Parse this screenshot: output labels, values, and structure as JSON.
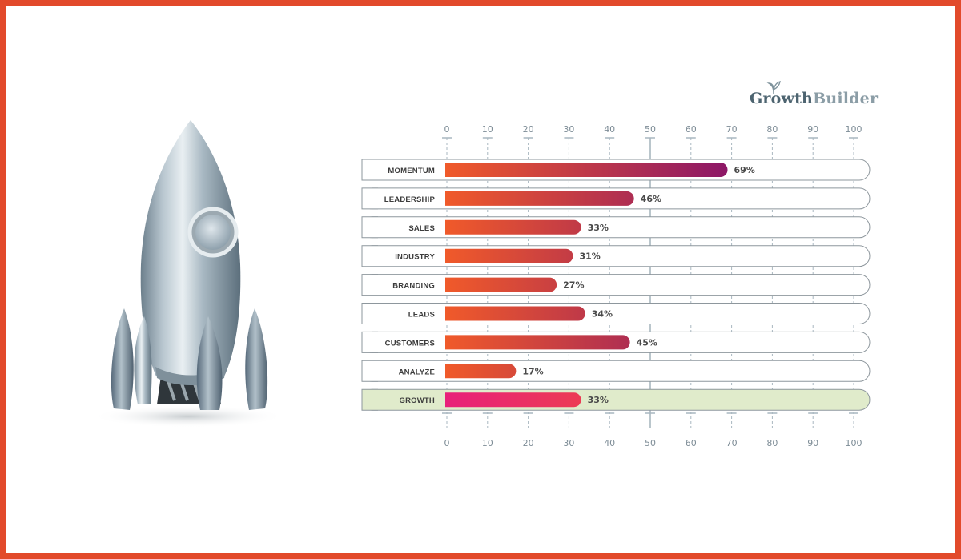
{
  "brand": {
    "name_part1": "Growth",
    "name_part2": "Builder"
  },
  "colors": {
    "frame": "#e24a2b",
    "bar_start": "#f05a2a",
    "bar_end": "#8b1668",
    "highlight_row_bg": "#e0ebcb",
    "highlight_bar_start": "#e8207a",
    "highlight_bar_end": "#f05a2a",
    "axis": "#a9b7c0"
  },
  "illustration": {
    "icon": "rocket-icon"
  },
  "chart_data": {
    "type": "bar",
    "orientation": "horizontal",
    "categories": [
      "MOMENTUM",
      "LEADERSHIP",
      "SALES",
      "INDUSTRY",
      "BRANDING",
      "LEADS",
      "CUSTOMERS",
      "ANALYZE",
      "GROWTH"
    ],
    "values": [
      69,
      46,
      33,
      31,
      27,
      34,
      45,
      17,
      33
    ],
    "value_labels": [
      "69%",
      "46%",
      "33%",
      "31%",
      "27%",
      "34%",
      "45%",
      "17%",
      "33%"
    ],
    "highlighted_category": "GROWTH",
    "xlim": [
      0,
      100
    ],
    "x_ticks": [
      "0",
      "10",
      "20",
      "30",
      "40",
      "50",
      "60",
      "70",
      "80",
      "90",
      "100"
    ],
    "axes": "top-and-bottom",
    "grid": true,
    "legend": "none",
    "title": "",
    "xlabel": "",
    "ylabel": ""
  }
}
